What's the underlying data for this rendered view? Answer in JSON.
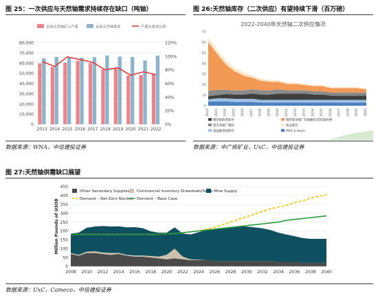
{
  "figures": {
    "f25": {
      "title": "图 25：一次供应与天然铀需求持续存在缺口（吨铀）",
      "source": "数据来源：WNA，中信建投证券"
    },
    "f26": {
      "title": "图 26:天然铀库存（二次供应）有望持续下滑（百万磅）",
      "source": "数据来源：中广核矿业，UxC，中信建投证券"
    },
    "f27": {
      "title": "图 27:天然铀供需缺口展望",
      "source": "数据来源：UxC，Cameco，中信建投证券"
    }
  },
  "chart_data": [
    {
      "id": "f25",
      "type": "bar",
      "categories": [
        "2013",
        "2014",
        "2015",
        "2016",
        "2017",
        "2018",
        "2019",
        "2020",
        "2021",
        "2022"
      ],
      "series": [
        {
          "name": "全球天然铀矿山产量",
          "kind": "bar",
          "axis": "left",
          "color": "#e9858b",
          "values": [
            59500,
            56200,
            60400,
            62100,
            59900,
            53700,
            54700,
            47700,
            48300,
            49300
          ]
        },
        {
          "name": "全球天然铀需求",
          "kind": "bar",
          "axis": "left",
          "color": "#8eb3cc",
          "values": [
            64600,
            65900,
            65300,
            65300,
            65700,
            67400,
            66200,
            65900,
            62500,
            67200
          ]
        },
        {
          "name": "产量占需求比例",
          "kind": "line",
          "axis": "right",
          "color": "#e03a3e",
          "values": [
            0.92,
            0.85,
            0.99,
            0.95,
            0.91,
            0.8,
            0.83,
            0.72,
            0.77,
            0.73
          ]
        }
      ],
      "yticks_left": [
        "0",
        "10,000",
        "20,000",
        "30,000",
        "40,000",
        "50,000",
        "60,000",
        "70,000",
        "80,000"
      ],
      "yticks_right": [
        "0%",
        "20%",
        "40%",
        "60%",
        "80%",
        "100%",
        "120%"
      ],
      "ylim_left": [
        0,
        80000
      ],
      "ylim_right": [
        0,
        1.2
      ],
      "grid": true,
      "legend": "top"
    },
    {
      "id": "f26",
      "type": "area",
      "title": "2022-2040年天然铀二次供应情况",
      "x": [
        "2022",
        "2023",
        "2024",
        "2025",
        "2026",
        "2027",
        "2028",
        "2029",
        "2030",
        "2031",
        "2032",
        "2033",
        "2034",
        "2035",
        "2036",
        "2037",
        "2038",
        "2039",
        "2040"
      ],
      "series": [
        {
          "name": "MOX & RepU",
          "color": "#4a7fc1",
          "values": [
            4,
            4,
            4,
            3.5,
            3.5,
            3.5,
            3,
            3,
            3,
            3,
            3,
            3,
            3,
            3,
            3,
            3,
            3,
            3,
            3
          ]
        },
        {
          "name": "美国能源部库存",
          "color": "#9fc0e3",
          "values": [
            2,
            3,
            3,
            3,
            3,
            3,
            2.5,
            2.5,
            2.5,
            2.5,
            2.5,
            2.5,
            2.5,
            2.5,
            2.5,
            2.5,
            2.5,
            2.5,
            2.5
          ]
        },
        {
          "name": "俄罗斯政府库存",
          "color": "#3f3f3f",
          "values": [
            3,
            3,
            4,
            4,
            4,
            5,
            5,
            5,
            6,
            6,
            6,
            6,
            5,
            5,
            4,
            4,
            4,
            4,
            4
          ]
        },
        {
          "name": "西方浓缩厂尾料",
          "color": "#8a8a8a",
          "values": [
            5,
            5,
            4,
            4,
            4,
            4,
            4,
            4,
            4,
            3,
            3,
            3,
            3,
            3,
            3,
            3,
            3,
            3,
            3
          ]
        },
        {
          "name": "俄罗斯浓缩厂贫铀尾料/贫料再利用",
          "color": "#f29a55",
          "values": [
            46,
            34,
            24,
            18,
            14,
            11,
            9,
            8,
            7,
            6,
            6,
            5,
            5,
            5,
            4,
            4,
            4,
            4,
            3
          ]
        },
        {
          "name": "商业库存",
          "color": "#fde5c5",
          "values": [
            4,
            4,
            4,
            3,
            3,
            2,
            2,
            2,
            1.5,
            1.5,
            1,
            1,
            1,
            1,
            1,
            1,
            1,
            1,
            1
          ]
        }
      ],
      "ylim": [
        0,
        70
      ],
      "yticks": [
        "0",
        "10",
        "20",
        "30",
        "40",
        "50",
        "60",
        "70"
      ],
      "legend": "bottom",
      "legend_labels": [
        "俄罗斯政府库存",
        "俄罗斯浓缩厂贫铀尾料/贫料再利用",
        "西方浓缩厂尾料",
        "商业库存",
        "美国能源部库存",
        "MOX & RepU"
      ]
    },
    {
      "id": "f27",
      "type": "area",
      "x": [
        2008,
        2009,
        2010,
        2011,
        2012,
        2013,
        2014,
        2015,
        2016,
        2017,
        2018,
        2019,
        2020,
        2021,
        2022,
        2023,
        2024,
        2025,
        2026,
        2027,
        2028,
        2029,
        2030,
        2031,
        2032,
        2033,
        2034,
        2035,
        2036,
        2037,
        2038,
        2039,
        2040
      ],
      "xtick_labels": [
        "2008",
        "2010",
        "2012",
        "2014",
        "2016",
        "2018",
        "2020",
        "2022",
        "2024",
        "2026",
        "2028",
        "2030",
        "2032",
        "2034",
        "2036",
        "2038",
        "2040"
      ],
      "ylabel": "Million Pounds of U3O8",
      "ylim": [
        0,
        450
      ],
      "yticks": [
        "0",
        "50",
        "100",
        "150",
        "200",
        "250",
        "300",
        "350",
        "400",
        "450"
      ],
      "series": [
        {
          "name": "Other Secondary Supplies",
          "kind": "area",
          "color": "#4a4a4a",
          "values": [
            70,
            60,
            75,
            75,
            70,
            65,
            70,
            60,
            55,
            55,
            50,
            45,
            40,
            45,
            40,
            35,
            35,
            35,
            30,
            30,
            30,
            30,
            30,
            30,
            30,
            30,
            25,
            25,
            25,
            20,
            20,
            20,
            20
          ]
        },
        {
          "name": "Commercial Inventory Drawdown/Sales",
          "kind": "area",
          "color": "#cfc2ad",
          "values": [
            5,
            5,
            8,
            10,
            8,
            10,
            6,
            5,
            6,
            6,
            8,
            10,
            25,
            55,
            15,
            5,
            3,
            0,
            0,
            0,
            0,
            0,
            0,
            0,
            0,
            0,
            0,
            0,
            0,
            0,
            0,
            0,
            0
          ]
        },
        {
          "name": "Mine Supply",
          "kind": "area",
          "color": "#0f5060",
          "values": [
            110,
            125,
            135,
            140,
            150,
            150,
            150,
            155,
            160,
            155,
            140,
            135,
            125,
            120,
            130,
            140,
            155,
            170,
            180,
            185,
            190,
            195,
            195,
            190,
            185,
            175,
            165,
            155,
            145,
            140,
            135,
            135,
            135
          ]
        },
        {
          "name": "Demand – Net-Zero Nuclear",
          "kind": "line",
          "dash": true,
          "color": "#f5c000",
          "values": [
            180,
            180,
            180,
            180,
            180,
            180,
            180,
            180,
            180,
            180,
            180,
            180,
            185,
            185,
            190,
            195,
            200,
            210,
            220,
            235,
            250,
            265,
            280,
            295,
            310,
            325,
            335,
            345,
            360,
            370,
            385,
            395,
            405
          ]
        },
        {
          "name": "Demand – Base Case",
          "kind": "line",
          "color": "#2a9a3a",
          "values": [
            180,
            180,
            180,
            180,
            180,
            180,
            180,
            180,
            180,
            180,
            180,
            180,
            185,
            185,
            190,
            195,
            200,
            205,
            210,
            215,
            220,
            225,
            230,
            235,
            240,
            245,
            250,
            260,
            265,
            270,
            275,
            280,
            285
          ]
        }
      ],
      "legend": "top-left"
    }
  ]
}
